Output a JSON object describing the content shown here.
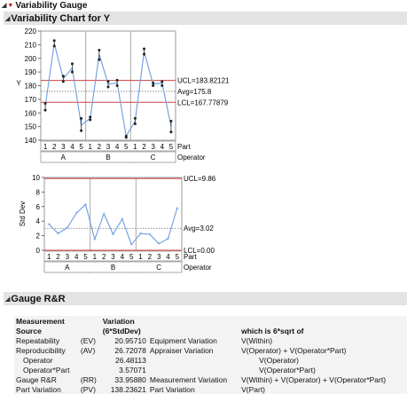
{
  "header": {
    "main_title": "Variability Gauge",
    "section_chart": "Variability Chart for Y",
    "section_grr": "Gauge R&R"
  },
  "chart_data": [
    {
      "type": "line",
      "title": "",
      "ylabel": "Y",
      "ylim": [
        140,
        220
      ],
      "yticks": [
        140,
        150,
        160,
        170,
        180,
        190,
        200,
        210,
        220
      ],
      "groups": [
        "A",
        "B",
        "C"
      ],
      "parts": [
        "1",
        "2",
        "3",
        "4",
        "5",
        "1",
        "2",
        "3",
        "4",
        "5",
        "1",
        "2",
        "3",
        "4",
        "5"
      ],
      "x_label_part": "Part",
      "x_label_operator": "Operator",
      "means": [
        165,
        211,
        185,
        193,
        151,
        156,
        203,
        181,
        182,
        143,
        154,
        205,
        181,
        182,
        150
      ],
      "points": [
        [
          167,
          162
        ],
        [
          213,
          209
        ],
        [
          187,
          183
        ],
        [
          196,
          190
        ],
        [
          156,
          147
        ],
        [
          157,
          155
        ],
        [
          206,
          199
        ],
        [
          183,
          179
        ],
        [
          184,
          180
        ],
        [
          143,
          142
        ],
        [
          156,
          152
        ],
        [
          207,
          203
        ],
        [
          182,
          180
        ],
        [
          183,
          180
        ],
        [
          154,
          146
        ]
      ],
      "reference_lines": {
        "ucl": 183.82121,
        "avg": 175.8,
        "lcl": 167.77879
      },
      "reference_labels": {
        "ucl": "UCL=183.82121",
        "avg": "Avg=175.8",
        "lcl": "LCL=167.77879"
      }
    },
    {
      "type": "line",
      "title": "",
      "ylabel": "Std Dev",
      "ylim": [
        0,
        10
      ],
      "yticks": [
        0,
        2,
        4,
        6,
        8,
        10
      ],
      "groups": [
        "A",
        "B",
        "C"
      ],
      "parts": [
        "1",
        "2",
        "3",
        "4",
        "5",
        "1",
        "2",
        "3",
        "4",
        "5",
        "1",
        "2",
        "3",
        "4",
        "5"
      ],
      "x_label_part": "Part",
      "x_label_operator": "Operator",
      "values": [
        3.6,
        2.3,
        3.1,
        5.1,
        6.3,
        1.5,
        5.0,
        2.2,
        4.3,
        0.8,
        2.3,
        2.2,
        0.9,
        1.6,
        5.8
      ],
      "reference_lines": {
        "ucl": 9.86,
        "avg": 3.02,
        "lcl": 0
      },
      "reference_labels": {
        "ucl": "UCL=9.86",
        "avg": "Avg=3.02",
        "lcl": "LCL=0.00"
      }
    }
  ],
  "grr": {
    "head": {
      "c1a": "Measurement",
      "c1b": "Source",
      "c3a": "Variation",
      "c3b": "(6*StdDev)",
      "c5": "which is 6*sqrt of"
    },
    "rows": [
      {
        "source": "Repeatability",
        "abbr": "(EV)",
        "value": "20.95710",
        "desc": "Equipment Variation",
        "formula": "V(Within)",
        "indent": false
      },
      {
        "source": "Reproducibility",
        "abbr": "(AV)",
        "value": "26.72078",
        "desc": "Appraiser Variation",
        "formula": "V(Operator) + V(Operator*Part)",
        "indent": false
      },
      {
        "source": "Operator",
        "abbr": "",
        "value": "26.48113",
        "desc": "",
        "formula": "V(Operator)",
        "indent": true
      },
      {
        "source": "Operator*Part",
        "abbr": "",
        "value": "3.57071",
        "desc": "",
        "formula": "V(Operator*Part)",
        "indent": true
      },
      {
        "source": "Gauge R&R",
        "abbr": "(RR)",
        "value": "33.95880",
        "desc": "Measurement Variation",
        "formula": "V(Within) + V(Operator) + V(Operator*Part)",
        "indent": false
      },
      {
        "source": "Part Variation",
        "abbr": "(PV)",
        "value": "138.23621",
        "desc": "Part Variation",
        "formula": "V(Part)",
        "indent": false
      }
    ]
  }
}
